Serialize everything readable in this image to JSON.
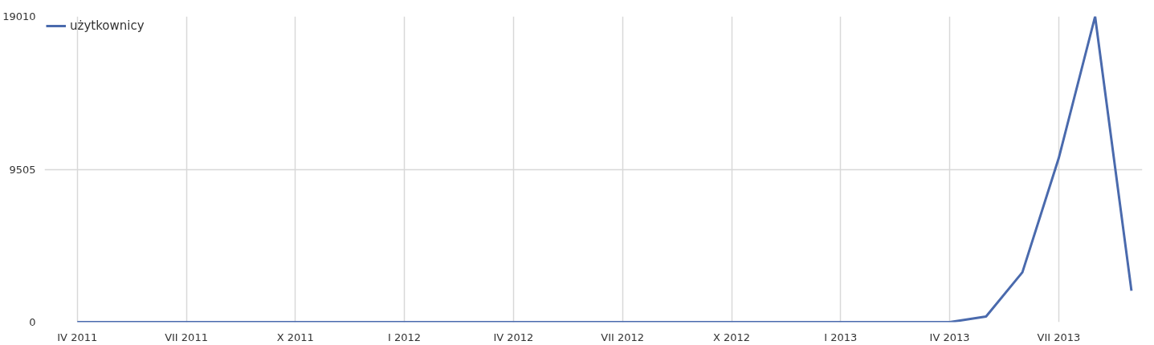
{
  "chart_data": {
    "type": "line",
    "categories": [
      "IV 2011",
      null,
      null,
      "VII 2011",
      null,
      null,
      "X 2011",
      null,
      null,
      "I 2012",
      null,
      null,
      "IV 2012",
      null,
      null,
      "VII 2012",
      null,
      null,
      "X 2012",
      null,
      null,
      "I 2013",
      null,
      null,
      "IV 2013",
      null,
      null,
      "VII 2013",
      null,
      null
    ],
    "series": [
      {
        "name": "użytkownicy",
        "color": "#4a6aad",
        "values": [
          0,
          0,
          0,
          0,
          0,
          0,
          0,
          0,
          0,
          0,
          0,
          0,
          0,
          0,
          0,
          0,
          0,
          0,
          0,
          0,
          0,
          0,
          0,
          0,
          0,
          350,
          3100,
          10200,
          19010,
          1950
        ]
      }
    ],
    "ylim": [
      0,
      19010
    ],
    "yticks": [
      0,
      9505,
      19010
    ],
    "grid": true,
    "legend": "top left",
    "marker": "none",
    "line_style": "solid"
  }
}
